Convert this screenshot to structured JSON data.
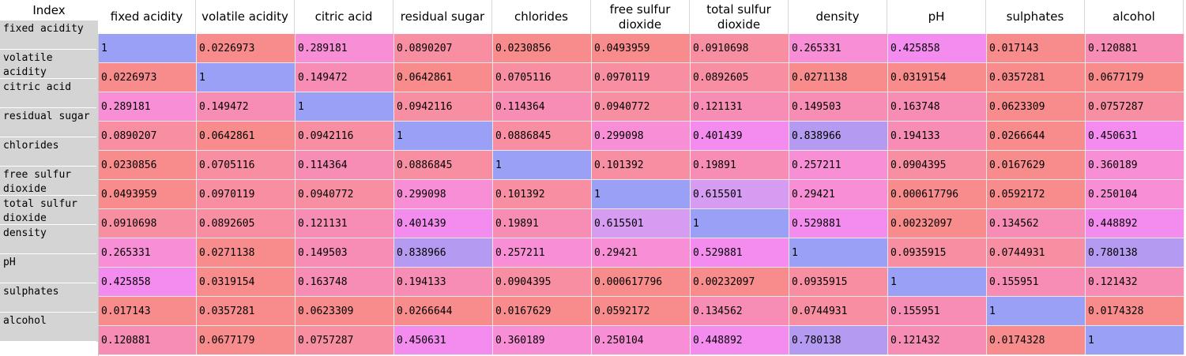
{
  "table": {
    "index_header": "Index",
    "columns": [
      "fixed acidity",
      "volatile acidity",
      "citric acid",
      "residual sugar",
      "chlorides",
      "free sulfur dioxide",
      "total sulfur dioxide",
      "density",
      "pH",
      "sulphates",
      "alcohol"
    ],
    "rows": [
      "fixed acidity",
      "volatile acidity",
      "citric acid",
      "residual sugar",
      "chlorides",
      "free sulfur dioxide",
      "total sulfur dioxide",
      "density",
      "pH",
      "sulphates",
      "alcohol"
    ],
    "values": [
      [
        "1",
        "0.0226973",
        "0.289181",
        "0.0890207",
        "0.0230856",
        "0.0493959",
        "0.0910698",
        "0.265331",
        "0.425858",
        "0.017143",
        "0.120881"
      ],
      [
        "0.0226973",
        "1",
        "0.149472",
        "0.0642861",
        "0.0705116",
        "0.0970119",
        "0.0892605",
        "0.0271138",
        "0.0319154",
        "0.0357281",
        "0.0677179"
      ],
      [
        "0.289181",
        "0.149472",
        "1",
        "0.0942116",
        "0.114364",
        "0.0940772",
        "0.121131",
        "0.149503",
        "0.163748",
        "0.0623309",
        "0.0757287"
      ],
      [
        "0.0890207",
        "0.0642861",
        "0.0942116",
        "1",
        "0.0886845",
        "0.299098",
        "0.401439",
        "0.838966",
        "0.194133",
        "0.0266644",
        "0.450631"
      ],
      [
        "0.0230856",
        "0.0705116",
        "0.114364",
        "0.0886845",
        "1",
        "0.101392",
        "0.19891",
        "0.257211",
        "0.0904395",
        "0.0167629",
        "0.360189"
      ],
      [
        "0.0493959",
        "0.0970119",
        "0.0940772",
        "0.299098",
        "0.101392",
        "1",
        "0.615501",
        "0.29421",
        "0.000617796",
        "0.0592172",
        "0.250104"
      ],
      [
        "0.0910698",
        "0.0892605",
        "0.121131",
        "0.401439",
        "0.19891",
        "0.615501",
        "1",
        "0.529881",
        "0.00232097",
        "0.134562",
        "0.448892"
      ],
      [
        "0.265331",
        "0.0271138",
        "0.149503",
        "0.838966",
        "0.257211",
        "0.29421",
        "0.529881",
        "1",
        "0.0935915",
        "0.0744931",
        "0.780138"
      ],
      [
        "0.425858",
        "0.0319154",
        "0.163748",
        "0.194133",
        "0.0904395",
        "0.000617796",
        "0.00232097",
        "0.0935915",
        "1",
        "0.155951",
        "0.121432"
      ],
      [
        "0.017143",
        "0.0357281",
        "0.0623309",
        "0.0266644",
        "0.0167629",
        "0.0592172",
        "0.134562",
        "0.0744931",
        "0.155951",
        "1",
        "0.0174328"
      ],
      [
        "0.120881",
        "0.0677179",
        "0.0757287",
        "0.450631",
        "0.360189",
        "0.250104",
        "0.448892",
        "0.780138",
        "0.121432",
        "0.0174328",
        "1"
      ]
    ]
  }
}
